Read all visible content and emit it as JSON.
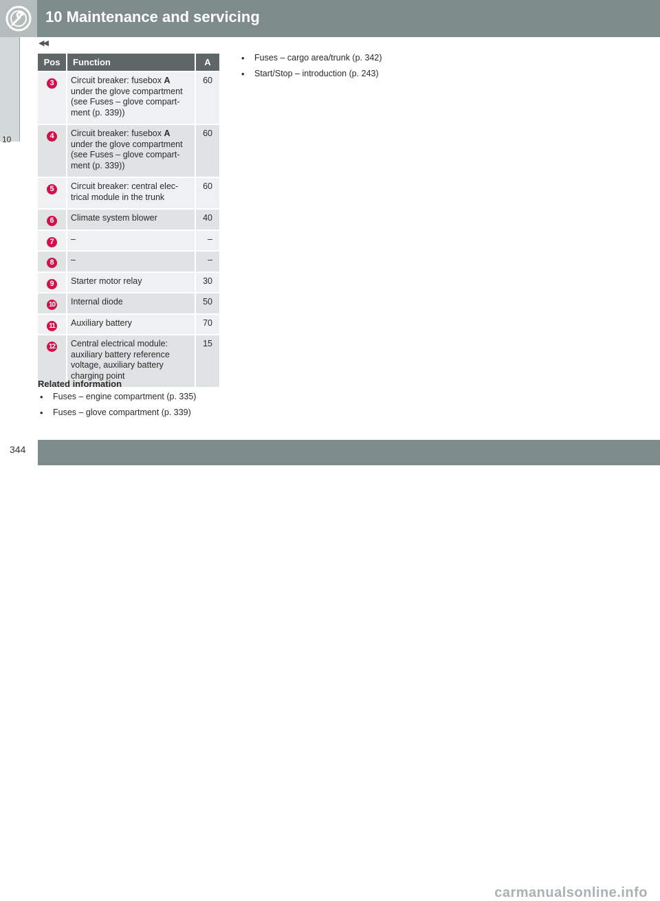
{
  "header": {
    "title": "10 Maintenance and servicing",
    "icon": "wrench-gear-icon"
  },
  "side_tab": {
    "label": "10"
  },
  "prev_marker": "◀◀",
  "table": {
    "headers": {
      "pos": "Pos",
      "function": "Function",
      "a": "A"
    },
    "rows": [
      {
        "pos": "3",
        "function_prefix": "Circuit breaker: fusebox ",
        "function_bold": "A",
        "function_rest": " under the glove compartment (see Fuses – glove compart-ment (p. 339))",
        "a": "60"
      },
      {
        "pos": "4",
        "function_prefix": "Circuit breaker: fusebox ",
        "function_bold": "A",
        "function_rest": " under the glove compartment (see Fuses – glove compart-ment (p. 339))",
        "a": "60"
      },
      {
        "pos": "5",
        "function_prefix": "Circuit breaker: central elec-trical module in the trunk",
        "function_bold": "",
        "function_rest": "",
        "a": "60"
      },
      {
        "pos": "6",
        "function_prefix": "Climate system blower",
        "function_bold": "",
        "function_rest": "",
        "a": "40"
      },
      {
        "pos": "7",
        "function_prefix": "–",
        "function_bold": "",
        "function_rest": "",
        "a": "–"
      },
      {
        "pos": "8",
        "function_prefix": "–",
        "function_bold": "",
        "function_rest": "",
        "a": "–"
      },
      {
        "pos": "9",
        "function_prefix": "Starter motor relay",
        "function_bold": "",
        "function_rest": "",
        "a": "30"
      },
      {
        "pos": "10",
        "function_prefix": "Internal diode",
        "function_bold": "",
        "function_rest": "",
        "a": "50"
      },
      {
        "pos": "11",
        "function_prefix": "Auxiliary battery",
        "function_bold": "",
        "function_rest": "",
        "a": "70"
      },
      {
        "pos": "12",
        "function_prefix": "Central electrical module: auxiliary battery reference voltage, auxiliary battery charging point",
        "function_bold": "",
        "function_rest": "",
        "a": "15"
      }
    ]
  },
  "related": {
    "title": "Related information",
    "items": [
      "Fuses – engine compartment (p. 335)",
      "Fuses – glove compartment (p. 339)"
    ]
  },
  "right_list": [
    "Fuses – cargo area/trunk (p. 342)",
    "Start/Stop – introduction (p. 243)"
  ],
  "bullet_char": "•",
  "page_number": "344",
  "watermark": "carmanualsonline.info",
  "colors": {
    "header": "#7d8b8b",
    "badge": "#d2114a",
    "table_head": "#5e6666"
  }
}
